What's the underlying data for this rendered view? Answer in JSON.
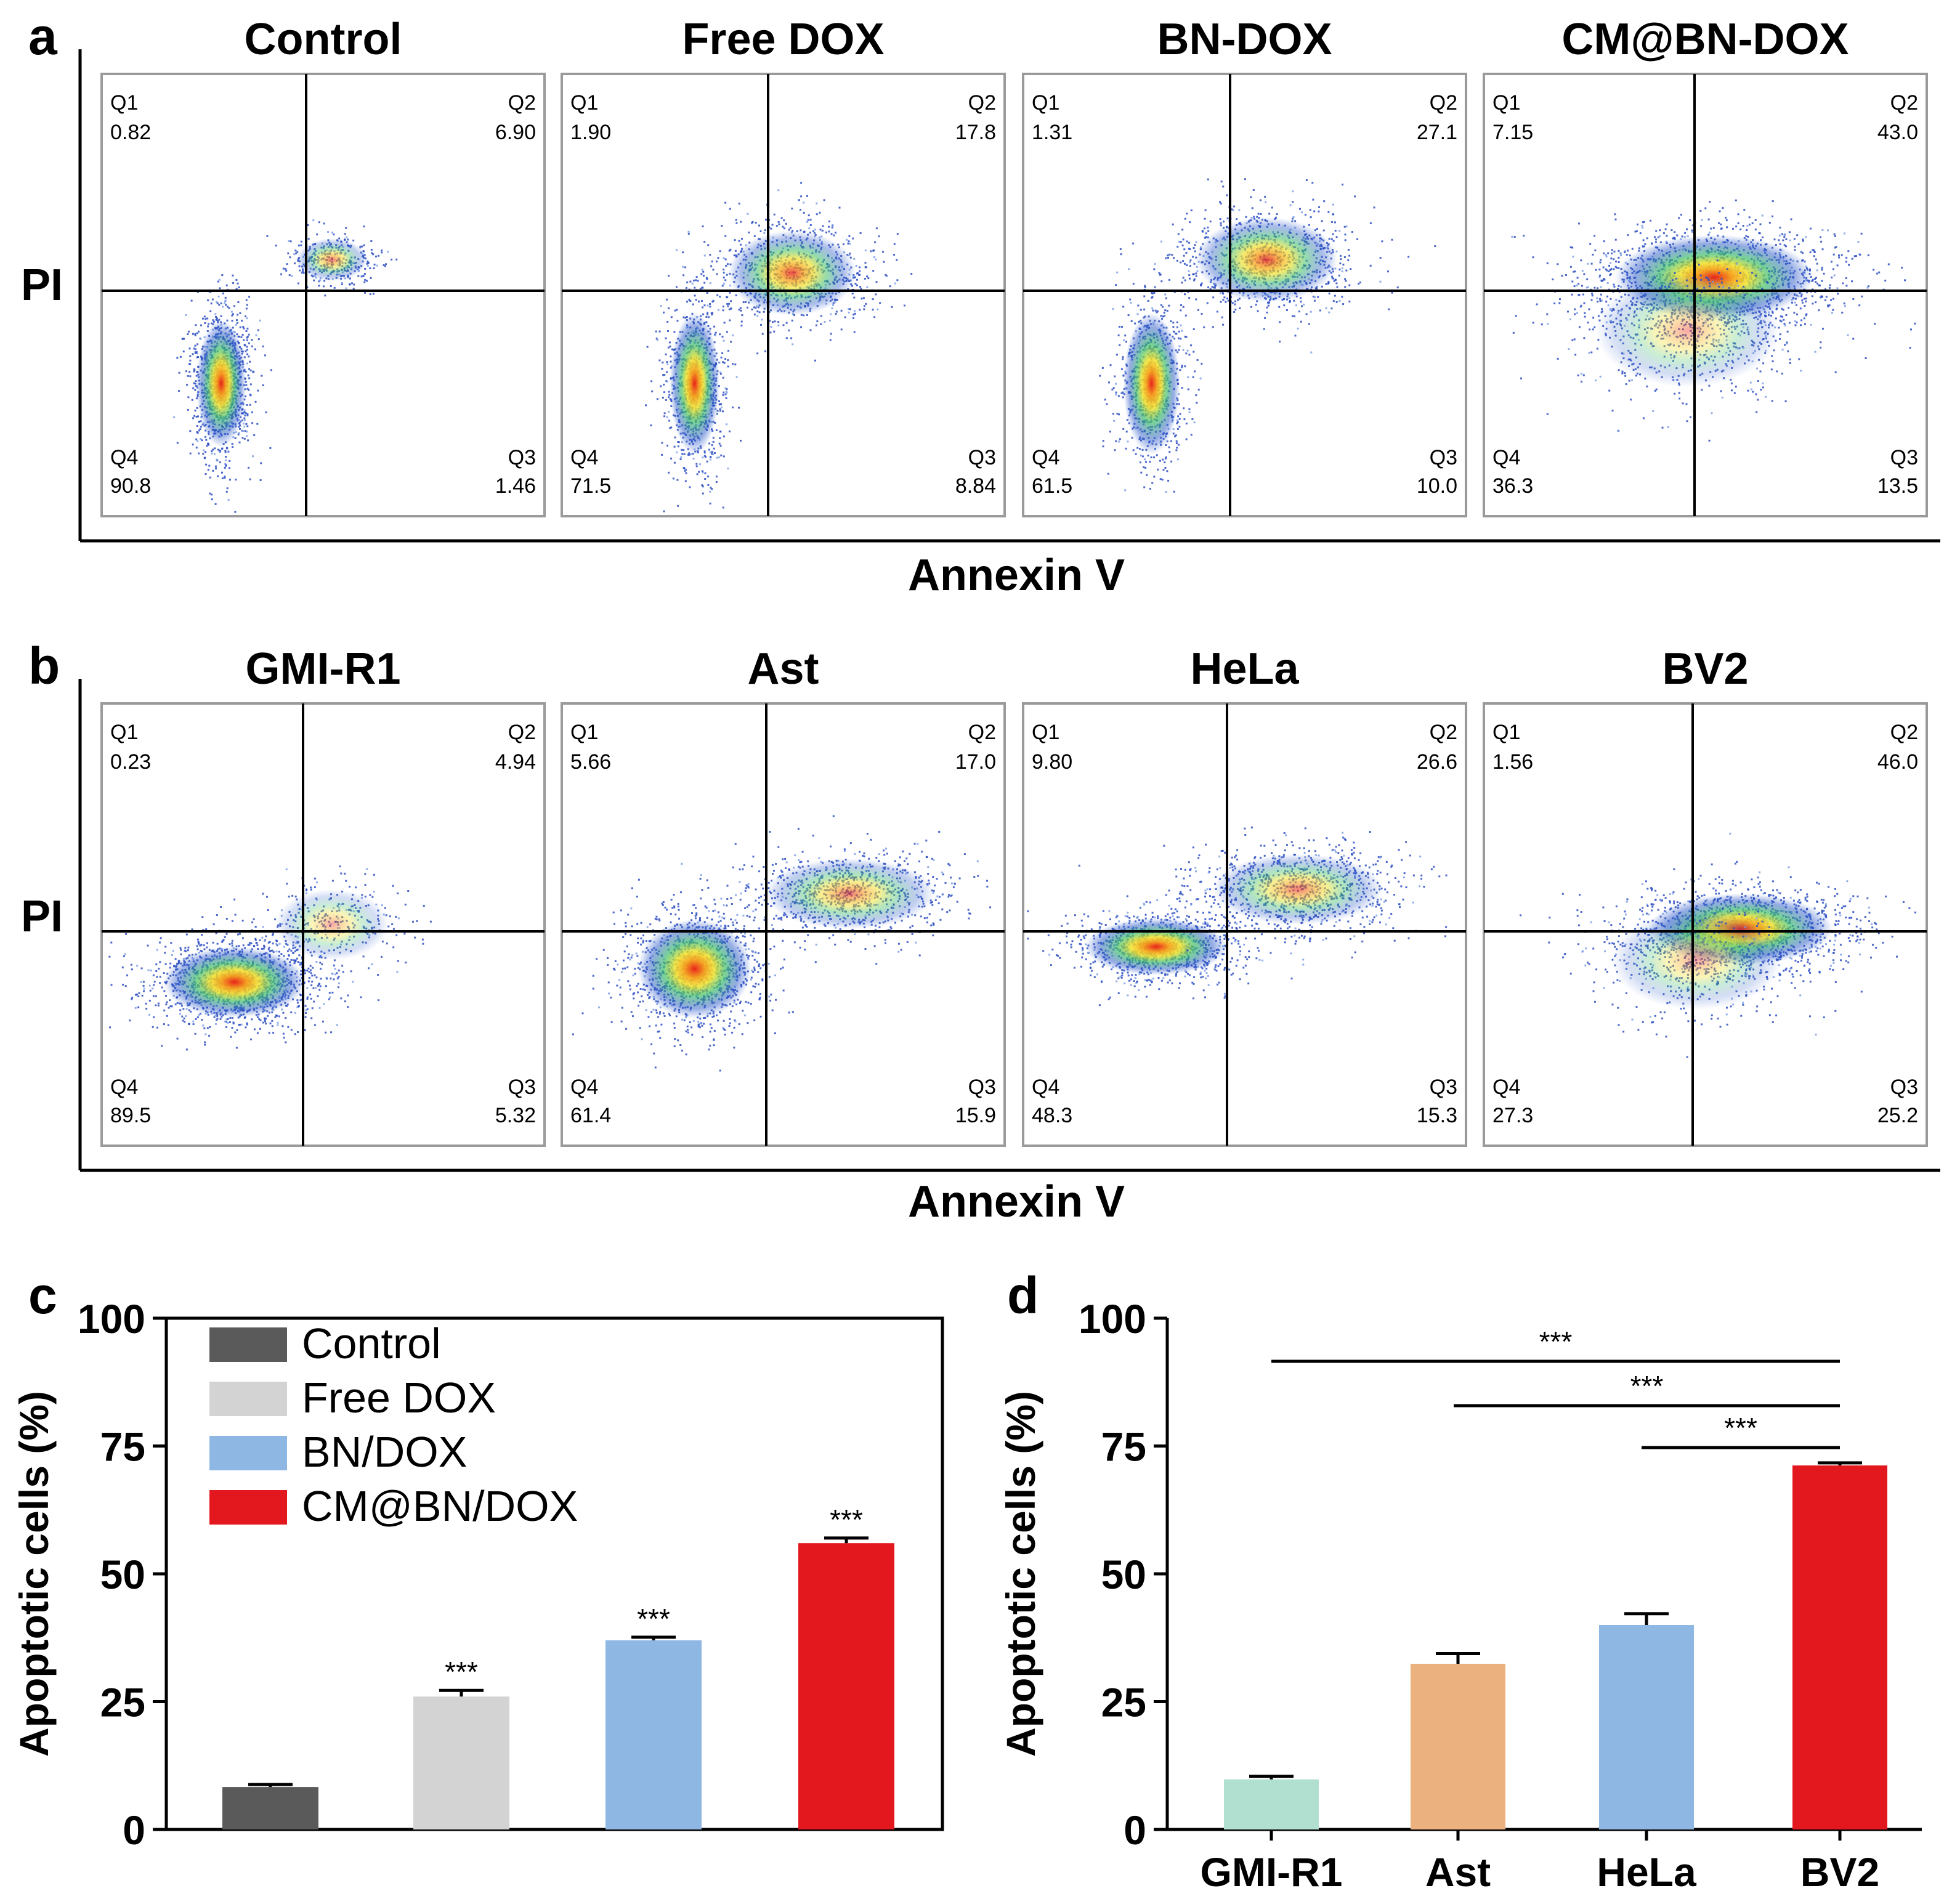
{
  "panel_letters": [
    "a",
    "b",
    "c",
    "d"
  ],
  "chart_data": [
    {
      "type": "scatter",
      "subtype": "flow-cytometry-quadrant",
      "panel": "a",
      "xlabel": "Annexin V",
      "ylabel": "PI",
      "plots": [
        {
          "title": "Control",
          "quadrants": {
            "Q1": "0.82",
            "Q2": "6.90",
            "Q3": "1.46",
            "Q4": "90.8"
          }
        },
        {
          "title": "Free DOX",
          "quadrants": {
            "Q1": "1.90",
            "Q2": "17.8",
            "Q3": "8.84",
            "Q4": "71.5"
          }
        },
        {
          "title": "BN-DOX",
          "quadrants": {
            "Q1": "1.31",
            "Q2": "27.1",
            "Q3": "10.0",
            "Q4": "61.5"
          }
        },
        {
          "title": "CM@BN-DOX",
          "quadrants": {
            "Q1": "7.15",
            "Q2": "43.0",
            "Q3": "13.5",
            "Q4": "36.3"
          }
        }
      ]
    },
    {
      "type": "scatter",
      "subtype": "flow-cytometry-quadrant",
      "panel": "b",
      "xlabel": "Annexin V",
      "ylabel": "PI",
      "plots": [
        {
          "title": "GMI-R1",
          "quadrants": {
            "Q1": "0.23",
            "Q2": "4.94",
            "Q3": "5.32",
            "Q4": "89.5"
          }
        },
        {
          "title": "Ast",
          "quadrants": {
            "Q1": "5.66",
            "Q2": "17.0",
            "Q3": "15.9",
            "Q4": "61.4"
          }
        },
        {
          "title": "HeLa",
          "quadrants": {
            "Q1": "9.80",
            "Q2": "26.6",
            "Q3": "15.3",
            "Q4": "48.3"
          }
        },
        {
          "title": "BV2",
          "quadrants": {
            "Q1": "1.56",
            "Q2": "46.0",
            "Q3": "25.2",
            "Q4": "27.3"
          }
        }
      ]
    },
    {
      "type": "bar",
      "panel": "c",
      "ylabel": "Apoptotic cells (%)",
      "xlabel": "",
      "ylim": [
        0,
        100
      ],
      "yticks": [
        0,
        25,
        50,
        75,
        100
      ],
      "categories": [
        "Control",
        "Free DOX",
        "BN/DOX",
        "CM@BN/DOX"
      ],
      "values": [
        8.3,
        26.0,
        37.0,
        56.0
      ],
      "errors": [
        0.5,
        1.2,
        0.6,
        1.0
      ],
      "colors": [
        "#5a5a5a",
        "#d3d3d3",
        "#8fb7e3",
        "#e3171e"
      ],
      "significance": [
        "",
        "***",
        "***",
        "***"
      ],
      "legend": [
        "Control",
        "Free DOX",
        "BN/DOX",
        "CM@BN/DOX"
      ],
      "legend_position": "top-left"
    },
    {
      "type": "bar",
      "panel": "d",
      "ylabel": "Apoptotic cells (%)",
      "xlabel": "",
      "ylim": [
        0,
        100
      ],
      "yticks": [
        0,
        25,
        50,
        75,
        100
      ],
      "categories": [
        "GMI-R1",
        "Ast",
        "HeLa",
        "BV2"
      ],
      "values": [
        9.8,
        32.4,
        40.0,
        71.2
      ],
      "errors": [
        0.6,
        2.0,
        2.2,
        0.5
      ],
      "colors": [
        "#b2e0d0",
        "#ebb27f",
        "#8fb7e3",
        "#e3171e"
      ],
      "comparisons": [
        {
          "from": 0,
          "to": 3,
          "label": "***"
        },
        {
          "from": 1,
          "to": 3,
          "label": "***"
        },
        {
          "from": 2,
          "to": 3,
          "label": "***"
        }
      ]
    }
  ]
}
